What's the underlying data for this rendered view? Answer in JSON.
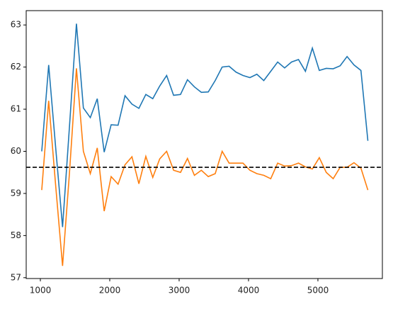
{
  "chart_data": {
    "type": "line",
    "x": [
      1020,
      1120,
      1220,
      1320,
      1420,
      1520,
      1620,
      1720,
      1820,
      1920,
      2020,
      2120,
      2220,
      2320,
      2420,
      2520,
      2620,
      2720,
      2820,
      2920,
      3020,
      3120,
      3220,
      3320,
      3420,
      3520,
      3620,
      3720,
      3820,
      3920,
      4020,
      4120,
      4220,
      4320,
      4420,
      4520,
      4620,
      4720,
      4820,
      4920,
      5020,
      5120,
      5220,
      5320,
      5420,
      5520,
      5620,
      5720
    ],
    "series": [
      {
        "color": "#1f77b4",
        "values": [
          60.0,
          62.05,
          60.1,
          58.2,
          60.6,
          63.03,
          61.03,
          60.8,
          61.25,
          59.98,
          60.63,
          60.62,
          61.32,
          61.12,
          61.02,
          61.35,
          61.25,
          61.55,
          61.8,
          61.33,
          61.35,
          61.7,
          61.53,
          61.4,
          61.41,
          61.68,
          62.0,
          62.02,
          61.88,
          61.8,
          61.75,
          61.83,
          61.68,
          61.9,
          62.12,
          61.98,
          62.12,
          62.18,
          61.9,
          62.45,
          61.92,
          61.97,
          61.96,
          62.03,
          62.25,
          62.05,
          61.92,
          60.25
        ]
      },
      {
        "color": "#ff7f0e",
        "values": [
          59.08,
          61.2,
          59.2,
          57.28,
          59.5,
          61.97,
          60.0,
          59.47,
          60.08,
          58.58,
          59.4,
          59.22,
          59.68,
          59.87,
          59.23,
          59.88,
          59.38,
          59.82,
          60.0,
          59.55,
          59.5,
          59.83,
          59.43,
          59.55,
          59.4,
          59.47,
          60.0,
          59.72,
          59.72,
          59.72,
          59.55,
          59.47,
          59.43,
          59.35,
          59.72,
          59.65,
          59.66,
          59.72,
          59.63,
          59.58,
          59.85,
          59.5,
          59.35,
          59.62,
          59.62,
          59.73,
          59.6,
          59.08
        ]
      }
    ],
    "hline": {
      "value": 59.62,
      "color": "#000000",
      "dashed": true
    },
    "xlim": [
      796,
      5929
    ],
    "xticks": [
      1000,
      2000,
      3000,
      4000,
      5000
    ],
    "ylim": [
      56.98,
      63.34
    ],
    "yticks": [
      57,
      58,
      59,
      60,
      61,
      62,
      63
    ]
  }
}
